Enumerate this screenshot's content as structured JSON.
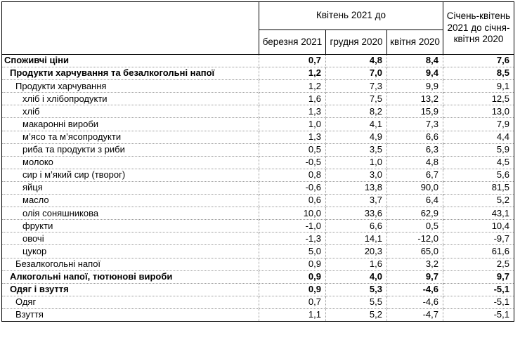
{
  "table": {
    "corner_label": "",
    "group_header": "Квітень 2021 до",
    "sub_headers": [
      "березня 2021",
      "грудня 2020",
      "квітня 2020"
    ],
    "period_header": "Січень-квітень 2021 до січня-квітня 2020",
    "rows": [
      {
        "label": "Споживчі ціни",
        "indent": 0,
        "bold": true,
        "values": [
          "0,7",
          "4,8",
          "8,4",
          "7,6"
        ]
      },
      {
        "label": "Продукти харчування та безалкогольні напої",
        "indent": 1,
        "bold": true,
        "values": [
          "1,2",
          "7,0",
          "9,4",
          "8,5"
        ]
      },
      {
        "label": "Продукти харчування",
        "indent": 2,
        "bold": false,
        "values": [
          "1,2",
          "7,3",
          "9,9",
          "9,1"
        ]
      },
      {
        "label": "хліб і хлібопродукти",
        "indent": 3,
        "bold": false,
        "values": [
          "1,6",
          "7,5",
          "13,2",
          "12,5"
        ]
      },
      {
        "label": "хліб",
        "indent": 3,
        "bold": false,
        "values": [
          "1,3",
          "8,2",
          "15,9",
          "13,0"
        ]
      },
      {
        "label": "макаронні вироби",
        "indent": 3,
        "bold": false,
        "values": [
          "1,0",
          "4,1",
          "7,3",
          "7,9"
        ]
      },
      {
        "label": "м’ясо та м’ясопродукти",
        "indent": 3,
        "bold": false,
        "values": [
          "1,3",
          "4,9",
          "6,6",
          "4,4"
        ]
      },
      {
        "label": "риба та продукти з риби",
        "indent": 3,
        "bold": false,
        "values": [
          "0,5",
          "3,5",
          "6,3",
          "5,9"
        ]
      },
      {
        "label": "молоко",
        "indent": 3,
        "bold": false,
        "values": [
          "-0,5",
          "1,0",
          "4,8",
          "4,5"
        ]
      },
      {
        "label": "сир і м’який сир (творог)",
        "indent": 3,
        "bold": false,
        "values": [
          "0,8",
          "3,0",
          "6,7",
          "5,6"
        ]
      },
      {
        "label": "яйця",
        "indent": 3,
        "bold": false,
        "values": [
          "-0,6",
          "13,8",
          "90,0",
          "81,5"
        ]
      },
      {
        "label": "масло",
        "indent": 3,
        "bold": false,
        "values": [
          "0,6",
          "3,7",
          "6,4",
          "5,2"
        ]
      },
      {
        "label": "олія соняшникова",
        "indent": 3,
        "bold": false,
        "values": [
          "10,0",
          "33,6",
          "62,9",
          "43,1"
        ]
      },
      {
        "label": "фрукти",
        "indent": 3,
        "bold": false,
        "values": [
          "-1,0",
          "6,6",
          "0,5",
          "10,4"
        ]
      },
      {
        "label": "овочі",
        "indent": 3,
        "bold": false,
        "values": [
          "-1,3",
          "14,1",
          "-12,0",
          "-9,7"
        ]
      },
      {
        "label": "цукор",
        "indent": 3,
        "bold": false,
        "values": [
          "5,0",
          "20,3",
          "65,0",
          "61,6"
        ]
      },
      {
        "label": "Безалкогольні напої",
        "indent": 2,
        "bold": false,
        "values": [
          "0,9",
          "1,6",
          "3,2",
          "2,5"
        ]
      },
      {
        "label": "Алкогольні напої, тютюнові вироби",
        "indent": 1,
        "bold": true,
        "values": [
          "0,9",
          "4,0",
          "9,7",
          "9,7"
        ]
      },
      {
        "label": "Одяг і взуття",
        "indent": 1,
        "bold": true,
        "values": [
          "0,9",
          "5,3",
          "-4,6",
          "-5,1"
        ]
      },
      {
        "label": "Одяг",
        "indent": 2,
        "bold": false,
        "values": [
          "0,7",
          "5,5",
          "-4,6",
          "-5,1"
        ]
      },
      {
        "label": "Взуття",
        "indent": 2,
        "bold": false,
        "values": [
          "1,1",
          "5,2",
          "-4,7",
          "-5,1"
        ]
      }
    ]
  },
  "chart_data": {
    "type": "table",
    "title": "",
    "column_groups": [
      {
        "label": "Квітень 2021 до",
        "columns": [
          "березня 2021",
          "грудня 2020",
          "квітня 2020"
        ]
      },
      {
        "label": "Січень-квітень 2021 до січня-квітня 2020",
        "columns": []
      }
    ],
    "columns": [
      "березня 2021",
      "грудня 2020",
      "квітня 2020",
      "Січень-квітень 2021 до січня-квітня 2020"
    ],
    "rows": [
      {
        "label": "Споживчі ціни",
        "values": [
          0.7,
          4.8,
          8.4,
          7.6
        ]
      },
      {
        "label": "Продукти харчування та безалкогольні напої",
        "values": [
          1.2,
          7.0,
          9.4,
          8.5
        ]
      },
      {
        "label": "Продукти харчування",
        "values": [
          1.2,
          7.3,
          9.9,
          9.1
        ]
      },
      {
        "label": "хліб і хлібопродукти",
        "values": [
          1.6,
          7.5,
          13.2,
          12.5
        ]
      },
      {
        "label": "хліб",
        "values": [
          1.3,
          8.2,
          15.9,
          13.0
        ]
      },
      {
        "label": "макаронні вироби",
        "values": [
          1.0,
          4.1,
          7.3,
          7.9
        ]
      },
      {
        "label": "м’ясо та м’ясопродукти",
        "values": [
          1.3,
          4.9,
          6.6,
          4.4
        ]
      },
      {
        "label": "риба та продукти з риби",
        "values": [
          0.5,
          3.5,
          6.3,
          5.9
        ]
      },
      {
        "label": "молоко",
        "values": [
          -0.5,
          1.0,
          4.8,
          4.5
        ]
      },
      {
        "label": "сир і м’який сир (творог)",
        "values": [
          0.8,
          3.0,
          6.7,
          5.6
        ]
      },
      {
        "label": "яйця",
        "values": [
          -0.6,
          13.8,
          90.0,
          81.5
        ]
      },
      {
        "label": "масло",
        "values": [
          0.6,
          3.7,
          6.4,
          5.2
        ]
      },
      {
        "label": "олія соняшникова",
        "values": [
          10.0,
          33.6,
          62.9,
          43.1
        ]
      },
      {
        "label": "фрукти",
        "values": [
          -1.0,
          6.6,
          0.5,
          10.4
        ]
      },
      {
        "label": "овочі",
        "values": [
          -1.3,
          14.1,
          -12.0,
          -9.7
        ]
      },
      {
        "label": "цукор",
        "values": [
          5.0,
          20.3,
          65.0,
          61.6
        ]
      },
      {
        "label": "Безалкогольні напої",
        "values": [
          0.9,
          1.6,
          3.2,
          2.5
        ]
      },
      {
        "label": "Алкогольні напої, тютюнові вироби",
        "values": [
          0.9,
          4.0,
          9.7,
          9.7
        ]
      },
      {
        "label": "Одяг і взуття",
        "values": [
          0.9,
          5.3,
          -4.6,
          -5.1
        ]
      },
      {
        "label": "Одяг",
        "values": [
          0.7,
          5.5,
          -4.6,
          -5.1
        ]
      },
      {
        "label": "Взуття",
        "values": [
          1.1,
          5.2,
          -4.7,
          -5.1
        ]
      }
    ]
  }
}
